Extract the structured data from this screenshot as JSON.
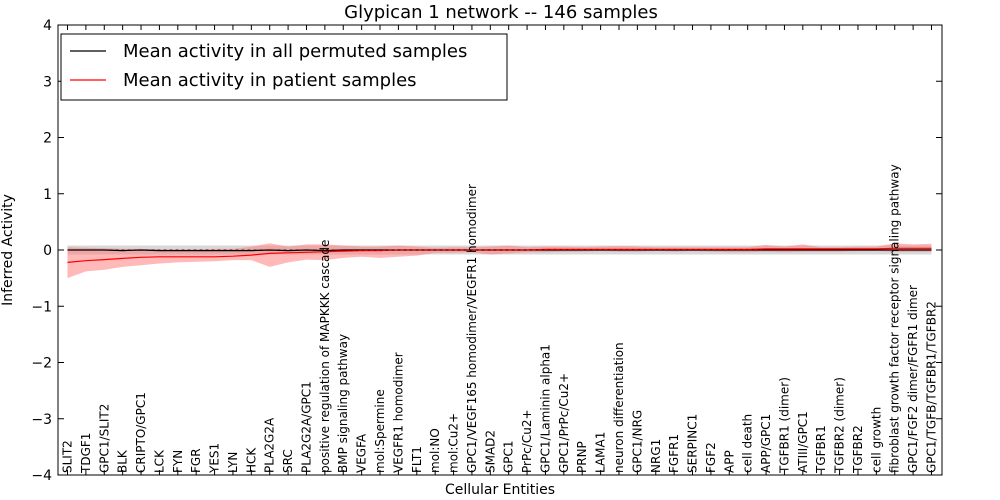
{
  "chart_data": {
    "type": "line",
    "title": "Glypican 1 network -- 146 samples",
    "xlabel": "Cellular Entities",
    "ylabel": "Inferred Activity",
    "ylim": [
      -4,
      4
    ],
    "yticks": [
      4,
      3,
      2,
      1,
      0,
      -1,
      -2,
      -3,
      -4
    ],
    "ytick_labels": [
      "4",
      "3",
      "2",
      "1",
      "0",
      "−1",
      "−2",
      "−3",
      "−4"
    ],
    "grid": false,
    "legend_position": "top-left",
    "categories": [
      "SLIT2",
      "TDGF1",
      "GPC1/SLIT2",
      "BLK",
      "CRIPTO/GPC1",
      "LCK",
      "FYN",
      "FGR",
      "YES1",
      "LYN",
      "HCK",
      "PLA2G2A",
      "SRC",
      "PLA2G2A/GPC1",
      "positive regulation of MAPKKK cascade",
      "BMP signaling pathway",
      "VEGFA",
      "mol:Spermine",
      "VEGFR1 homodimer",
      "FLT1",
      "mol:NO",
      "mol:Cu2+",
      "GPC1/VEGF165 homodimer/VEGFR1 homodimer",
      "SMAD2",
      "GPC1",
      "PrPc/Cu2+",
      "GPC1/Laminin alpha1",
      "GPC1/PrPc/Cu2+",
      "PRNP",
      "LAMA1",
      "neuron differentiation",
      "GPC1/NRG",
      "NRG1",
      "FGFR1",
      "SERPINC1",
      "FGF2",
      "APP",
      "cell death",
      "APP/GPC1",
      "TGFBR1 (dimer)",
      "ATIII/GPC1",
      "TGFBR1",
      "TGFBR2 (dimer)",
      "TGFBR2",
      "cell growth",
      "fibroblast growth factor receptor signaling pathway",
      "GPC1/FGF2 dimer/FGFR1 dimer",
      "GPC1/TGFB/TGFBR1/TGFBR2"
    ],
    "series": [
      {
        "name": "Mean activity in all permuted samples",
        "color": "#000000",
        "values": [
          0.0,
          0.0,
          0.0,
          -0.01,
          0.0,
          -0.01,
          -0.01,
          -0.01,
          -0.01,
          -0.01,
          -0.01,
          0.0,
          -0.01,
          0.0,
          -0.01,
          0.0,
          0.0,
          0.0,
          0.0,
          0.0,
          0.0,
          0.0,
          0.0,
          0.0,
          0.0,
          0.0,
          0.0,
          0.0,
          0.0,
          0.0,
          0.0,
          0.0,
          0.0,
          0.0,
          0.0,
          0.0,
          0.0,
          0.0,
          0.0,
          0.0,
          0.0,
          0.0,
          0.0,
          0.0,
          0.0,
          0.0,
          0.0,
          0.0
        ],
        "band_lower": [
          -0.08,
          -0.08,
          -0.08,
          -0.08,
          -0.08,
          -0.08,
          -0.08,
          -0.08,
          -0.08,
          -0.08,
          -0.08,
          -0.08,
          -0.08,
          -0.08,
          -0.08,
          -0.08,
          -0.08,
          -0.08,
          -0.08,
          -0.08,
          -0.08,
          -0.08,
          -0.08,
          -0.08,
          -0.08,
          -0.08,
          -0.08,
          -0.08,
          -0.08,
          -0.08,
          -0.08,
          -0.08,
          -0.08,
          -0.08,
          -0.08,
          -0.08,
          -0.08,
          -0.08,
          -0.08,
          -0.08,
          -0.08,
          -0.08,
          -0.08,
          -0.08,
          -0.08,
          -0.08,
          -0.08,
          -0.08
        ],
        "band_upper": [
          0.08,
          0.08,
          0.08,
          0.08,
          0.08,
          0.08,
          0.08,
          0.08,
          0.08,
          0.08,
          0.08,
          0.08,
          0.08,
          0.08,
          0.08,
          0.08,
          0.08,
          0.08,
          0.08,
          0.08,
          0.08,
          0.08,
          0.08,
          0.08,
          0.08,
          0.08,
          0.08,
          0.08,
          0.08,
          0.08,
          0.08,
          0.08,
          0.08,
          0.08,
          0.08,
          0.08,
          0.08,
          0.08,
          0.08,
          0.08,
          0.08,
          0.08,
          0.08,
          0.08,
          0.08,
          0.08,
          0.08,
          0.08
        ],
        "band_color": "#c8c8c8"
      },
      {
        "name": "Mean activity in patient samples",
        "color": "#ff0000",
        "values": [
          -0.22,
          -0.19,
          -0.17,
          -0.15,
          -0.13,
          -0.12,
          -0.12,
          -0.12,
          -0.12,
          -0.11,
          -0.09,
          -0.06,
          -0.05,
          -0.04,
          -0.03,
          -0.02,
          -0.01,
          -0.01,
          0.0,
          0.0,
          0.0,
          0.0,
          0.0,
          0.0,
          0.0,
          0.0,
          0.01,
          0.01,
          0.01,
          0.01,
          0.01,
          0.01,
          0.01,
          0.01,
          0.01,
          0.01,
          0.01,
          0.01,
          0.02,
          0.02,
          0.02,
          0.02,
          0.02,
          0.02,
          0.02,
          0.03,
          0.03,
          0.03
        ],
        "band_lower": [
          -0.5,
          -0.38,
          -0.35,
          -0.3,
          -0.27,
          -0.24,
          -0.22,
          -0.21,
          -0.2,
          -0.18,
          -0.18,
          -0.3,
          -0.22,
          -0.17,
          -0.18,
          -0.14,
          -0.12,
          -0.14,
          -0.12,
          -0.1,
          -0.05,
          -0.05,
          -0.04,
          -0.08,
          -0.06,
          -0.04,
          -0.04,
          -0.03,
          -0.03,
          -0.02,
          -0.03,
          -0.03,
          -0.02,
          -0.03,
          -0.02,
          -0.03,
          -0.04,
          -0.04,
          -0.03,
          -0.04,
          -0.03,
          -0.03,
          -0.03,
          -0.02,
          -0.02,
          -0.03,
          -0.03,
          -0.03
        ],
        "band_upper": [
          0.05,
          0.04,
          0.03,
          0.02,
          0.02,
          0.01,
          0.01,
          0.01,
          0.02,
          0.02,
          0.06,
          0.12,
          0.06,
          0.1,
          0.1,
          0.08,
          0.06,
          0.06,
          0.08,
          0.06,
          0.04,
          0.05,
          0.05,
          0.06,
          0.08,
          0.05,
          0.06,
          0.06,
          0.05,
          0.06,
          0.07,
          0.06,
          0.05,
          0.05,
          0.05,
          0.05,
          0.05,
          0.05,
          0.09,
          0.06,
          0.1,
          0.05,
          0.05,
          0.06,
          0.06,
          0.12,
          0.1,
          0.11
        ],
        "band_color": "#ff8080"
      }
    ]
  }
}
